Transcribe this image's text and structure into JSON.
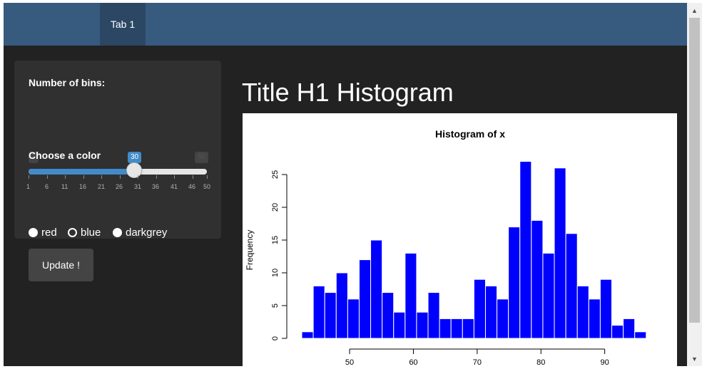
{
  "navbar": {
    "tabs": [
      {
        "label": "Tab 1",
        "active": true
      }
    ]
  },
  "sidebar": {
    "bins_label": "Number of bins:",
    "slider": {
      "min": "1",
      "max": "50",
      "value": "30",
      "ticks": [
        "1",
        "6",
        "11",
        "16",
        "21",
        "26",
        "31",
        "36",
        "41",
        "46",
        "50"
      ]
    },
    "color_label": "Choose a color",
    "color_options": [
      {
        "label": "red",
        "selected": false
      },
      {
        "label": "blue",
        "selected": true
      },
      {
        "label": "darkgrey",
        "selected": false
      }
    ],
    "update_label": "Update !"
  },
  "main": {
    "title": "Title H1 Histogram"
  },
  "colors": {
    "navbar": "#375a7f",
    "body_bg": "#222222",
    "panel_bg": "#303030",
    "accent": "#428bca",
    "bar_fill": "#0000ff"
  },
  "icons": {
    "scroll_up": "chevron-up-icon",
    "scroll_down": "chevron-down-icon"
  },
  "chart_data": {
    "type": "bar",
    "title": "Histogram of x",
    "xlabel": "",
    "ylabel": "Frequency",
    "x_ticks": [
      "50",
      "60",
      "70",
      "80",
      "90"
    ],
    "y_ticks": [
      "0",
      "5",
      "10",
      "15",
      "20",
      "25"
    ],
    "ylim": [
      0,
      27
    ],
    "bin_width": 1.8,
    "categories": [
      "42.5-44.3",
      "44.3-46.1",
      "46.1-47.9",
      "47.9-49.7",
      "49.7-51.5",
      "51.5-53.3",
      "53.3-55.1",
      "55.1-56.9",
      "56.9-58.7",
      "58.7-60.5",
      "60.5-62.3",
      "62.3-64.1",
      "64.1-65.9",
      "65.9-67.7",
      "67.7-69.5",
      "69.5-71.3",
      "71.3-73.1",
      "73.1-74.9",
      "74.9-76.7",
      "76.7-78.5",
      "78.5-80.3",
      "80.3-82.1",
      "82.1-83.9",
      "83.9-85.7",
      "85.7-87.5",
      "87.5-89.3",
      "89.3-91.1",
      "91.1-92.9",
      "92.9-94.7",
      "94.7-96.5"
    ],
    "values": [
      1,
      8,
      7,
      10,
      6,
      12,
      15,
      7,
      4,
      13,
      4,
      7,
      3,
      3,
      3,
      9,
      8,
      6,
      17,
      27,
      18,
      13,
      26,
      16,
      8,
      6,
      9,
      2,
      3,
      1
    ]
  }
}
